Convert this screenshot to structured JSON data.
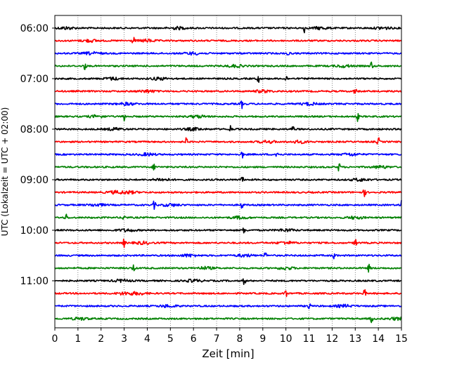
{
  "chart_data": {
    "type": "line",
    "title": "",
    "xlabel": "Zeit  [min]",
    "ylabel": "UTC (Lokalzeit = UTC + 02:00)",
    "xlim": [
      0,
      15
    ],
    "x_ticks": [
      0,
      1,
      2,
      3,
      4,
      5,
      6,
      7,
      8,
      9,
      10,
      11,
      12,
      13,
      14,
      15
    ],
    "grid": "vertical dotted",
    "legend": "none",
    "trace_interval_min": 15,
    "traces_start": "06:00",
    "trace_colors": [
      "#000000",
      "#ff0000",
      "#0000ff",
      "#008000"
    ],
    "y_ticks": [
      {
        "label": "06:00",
        "trace_index": 0
      },
      {
        "label": "07:00",
        "trace_index": 4
      },
      {
        "label": "08:00",
        "trace_index": 8
      },
      {
        "label": "09:00",
        "trace_index": 12
      },
      {
        "label": "10:00",
        "trace_index": 16
      },
      {
        "label": "11:00",
        "trace_index": 20
      }
    ],
    "series": [
      {
        "start": "06:00",
        "events_min": [
          10.8
        ],
        "bursts_min": [
          0.5,
          5.3,
          11.5,
          14.2
        ]
      },
      {
        "start": "06:15",
        "events_min": [
          3.4
        ],
        "bursts_min": [
          1.5,
          4.0
        ]
      },
      {
        "start": "06:30",
        "events_min": [
          10.1
        ],
        "bursts_min": [
          1.6,
          6.0
        ]
      },
      {
        "start": "06:45",
        "events_min": [
          1.3,
          13.7
        ],
        "bursts_min": [
          7.8,
          12.5
        ]
      },
      {
        "start": "07:00",
        "events_min": [
          8.8,
          10.0
        ],
        "bursts_min": [
          2.5,
          4.5
        ]
      },
      {
        "start": "07:15",
        "events_min": [
          13.0
        ],
        "bursts_min": [
          4.0,
          9.0
        ]
      },
      {
        "start": "07:30",
        "events_min": [
          8.1
        ],
        "bursts_min": [
          3.1,
          11.0
        ]
      },
      {
        "start": "07:45",
        "events_min": [
          3.0,
          13.1
        ],
        "bursts_min": [
          1.8,
          6.2
        ]
      },
      {
        "start": "08:00",
        "events_min": [
          7.6,
          10.3
        ],
        "bursts_min": [
          2.6,
          6.0
        ]
      },
      {
        "start": "08:15",
        "events_min": [
          5.7,
          14.0
        ],
        "bursts_min": [
          9.2,
          10.6
        ]
      },
      {
        "start": "08:30",
        "events_min": [
          8.1,
          9.6
        ],
        "bursts_min": [
          4.0,
          12.8
        ]
      },
      {
        "start": "08:45",
        "events_min": [
          4.3,
          12.3
        ],
        "bursts_min": [
          14.1
        ]
      },
      {
        "start": "09:00",
        "events_min": [
          8.1
        ],
        "bursts_min": [
          4.6,
          13.2
        ]
      },
      {
        "start": "09:15",
        "events_min": [
          13.4
        ],
        "bursts_min": [
          2.6,
          3.2
        ]
      },
      {
        "start": "09:30",
        "events_min": [
          4.3,
          8.1,
          15.0
        ],
        "bursts_min": [
          1.8,
          5.0
        ]
      },
      {
        "start": "09:45",
        "events_min": [
          0.5,
          3.0
        ],
        "bursts_min": [
          8.0,
          13.0
        ]
      },
      {
        "start": "10:00",
        "events_min": [
          8.2
        ],
        "bursts_min": [
          3.1,
          10.0
        ]
      },
      {
        "start": "10:15",
        "events_min": [
          3.0,
          13.0
        ],
        "bursts_min": [
          3.8,
          10.0
        ]
      },
      {
        "start": "10:30",
        "events_min": [
          9.1,
          12.1
        ],
        "bursts_min": [
          5.8,
          8.2
        ]
      },
      {
        "start": "10:45",
        "events_min": [
          3.4,
          13.6
        ],
        "bursts_min": [
          6.5,
          10.0
        ]
      },
      {
        "start": "11:00",
        "events_min": [
          8.2
        ],
        "bursts_min": [
          2.9,
          6.0
        ]
      },
      {
        "start": "11:15",
        "events_min": [
          13.4,
          10.0
        ],
        "bursts_min": [
          3.0,
          3.6
        ]
      },
      {
        "start": "11:30",
        "events_min": [
          11.0
        ],
        "bursts_min": [
          4.9,
          12.5
        ]
      },
      {
        "start": "11:45",
        "events_min": [
          13.7
        ],
        "bursts_min": [
          1.1,
          14.8
        ]
      }
    ]
  }
}
